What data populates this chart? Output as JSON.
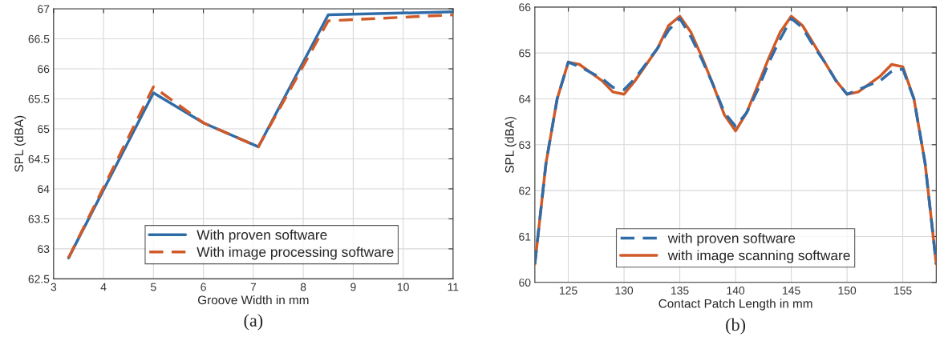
{
  "chart_data": [
    {
      "type": "line",
      "xlabel": "Groove Width in mm",
      "ylabel": "SPL (dBA)",
      "annotations": [
        "(a)"
      ],
      "xlim": [
        3,
        11
      ],
      "xticks": [
        3,
        4,
        5,
        6,
        7,
        8,
        9,
        10,
        11
      ],
      "ylim": [
        62.5,
        67
      ],
      "yticks": [
        62.5,
        63,
        63.5,
        64,
        64.5,
        65,
        65.5,
        66,
        66.5,
        67
      ],
      "grid": true,
      "legend": "bottom right",
      "series": [
        {
          "name": "With proven software",
          "color": "#2f6ca8",
          "line_style": "solid",
          "x": [
            3.3,
            5,
            6,
            7.1,
            8.5,
            11
          ],
          "values": [
            62.85,
            65.6,
            65.1,
            64.7,
            66.9,
            66.95
          ]
        },
        {
          "name": "With image processing software",
          "color": "#d05a28",
          "line_style": "dashed",
          "x": [
            3.3,
            5,
            6,
            7.1,
            8.5,
            11
          ],
          "values": [
            62.85,
            65.7,
            65.1,
            64.7,
            66.8,
            66.9
          ]
        }
      ]
    },
    {
      "type": "line",
      "xlabel": "Contact Patch Length in mm",
      "ylabel": "SPL (dBA)",
      "annotations": [
        "(b)"
      ],
      "xlim": [
        122,
        158
      ],
      "xticks": [
        125,
        130,
        135,
        140,
        145,
        150,
        155
      ],
      "ylim": [
        60,
        66
      ],
      "yticks": [
        60,
        61,
        62,
        63,
        64,
        65,
        66
      ],
      "grid": true,
      "legend": "bottom",
      "series": [
        {
          "name": "with proven software",
          "color": "#2f6ca8",
          "line_style": "dashed",
          "x": [
            122,
            123,
            124,
            125,
            126,
            128,
            129,
            130,
            131,
            133,
            134,
            135,
            136,
            137,
            138,
            139,
            140,
            141,
            142,
            143,
            144,
            145,
            146,
            147,
            148,
            149,
            150,
            151,
            153,
            154,
            155,
            156,
            157,
            158
          ],
          "values": [
            60.4,
            62.6,
            64.0,
            64.8,
            64.7,
            64.45,
            64.25,
            64.2,
            64.45,
            65.1,
            65.5,
            65.75,
            65.35,
            64.85,
            64.3,
            63.7,
            63.4,
            63.7,
            64.2,
            64.8,
            65.3,
            65.75,
            65.55,
            65.15,
            64.8,
            64.4,
            64.1,
            64.2,
            64.4,
            64.6,
            64.65,
            64.0,
            62.6,
            60.4
          ]
        },
        {
          "name": "with image scanning software",
          "color": "#d05a28",
          "line_style": "solid",
          "x": [
            122,
            123,
            124,
            125,
            126,
            128,
            129,
            130,
            131,
            133,
            134,
            135,
            136,
            137,
            138,
            139,
            140,
            141,
            142,
            143,
            144,
            145,
            146,
            147,
            148,
            149,
            150,
            151,
            153,
            154,
            155,
            156,
            157,
            158
          ],
          "values": [
            60.4,
            62.6,
            64.0,
            64.8,
            64.75,
            64.4,
            64.15,
            64.1,
            64.4,
            65.1,
            65.6,
            65.8,
            65.45,
            64.9,
            64.3,
            63.65,
            63.3,
            63.7,
            64.3,
            64.9,
            65.45,
            65.8,
            65.6,
            65.2,
            64.8,
            64.4,
            64.1,
            64.15,
            64.5,
            64.75,
            64.7,
            64.0,
            62.6,
            60.4
          ]
        }
      ]
    }
  ]
}
